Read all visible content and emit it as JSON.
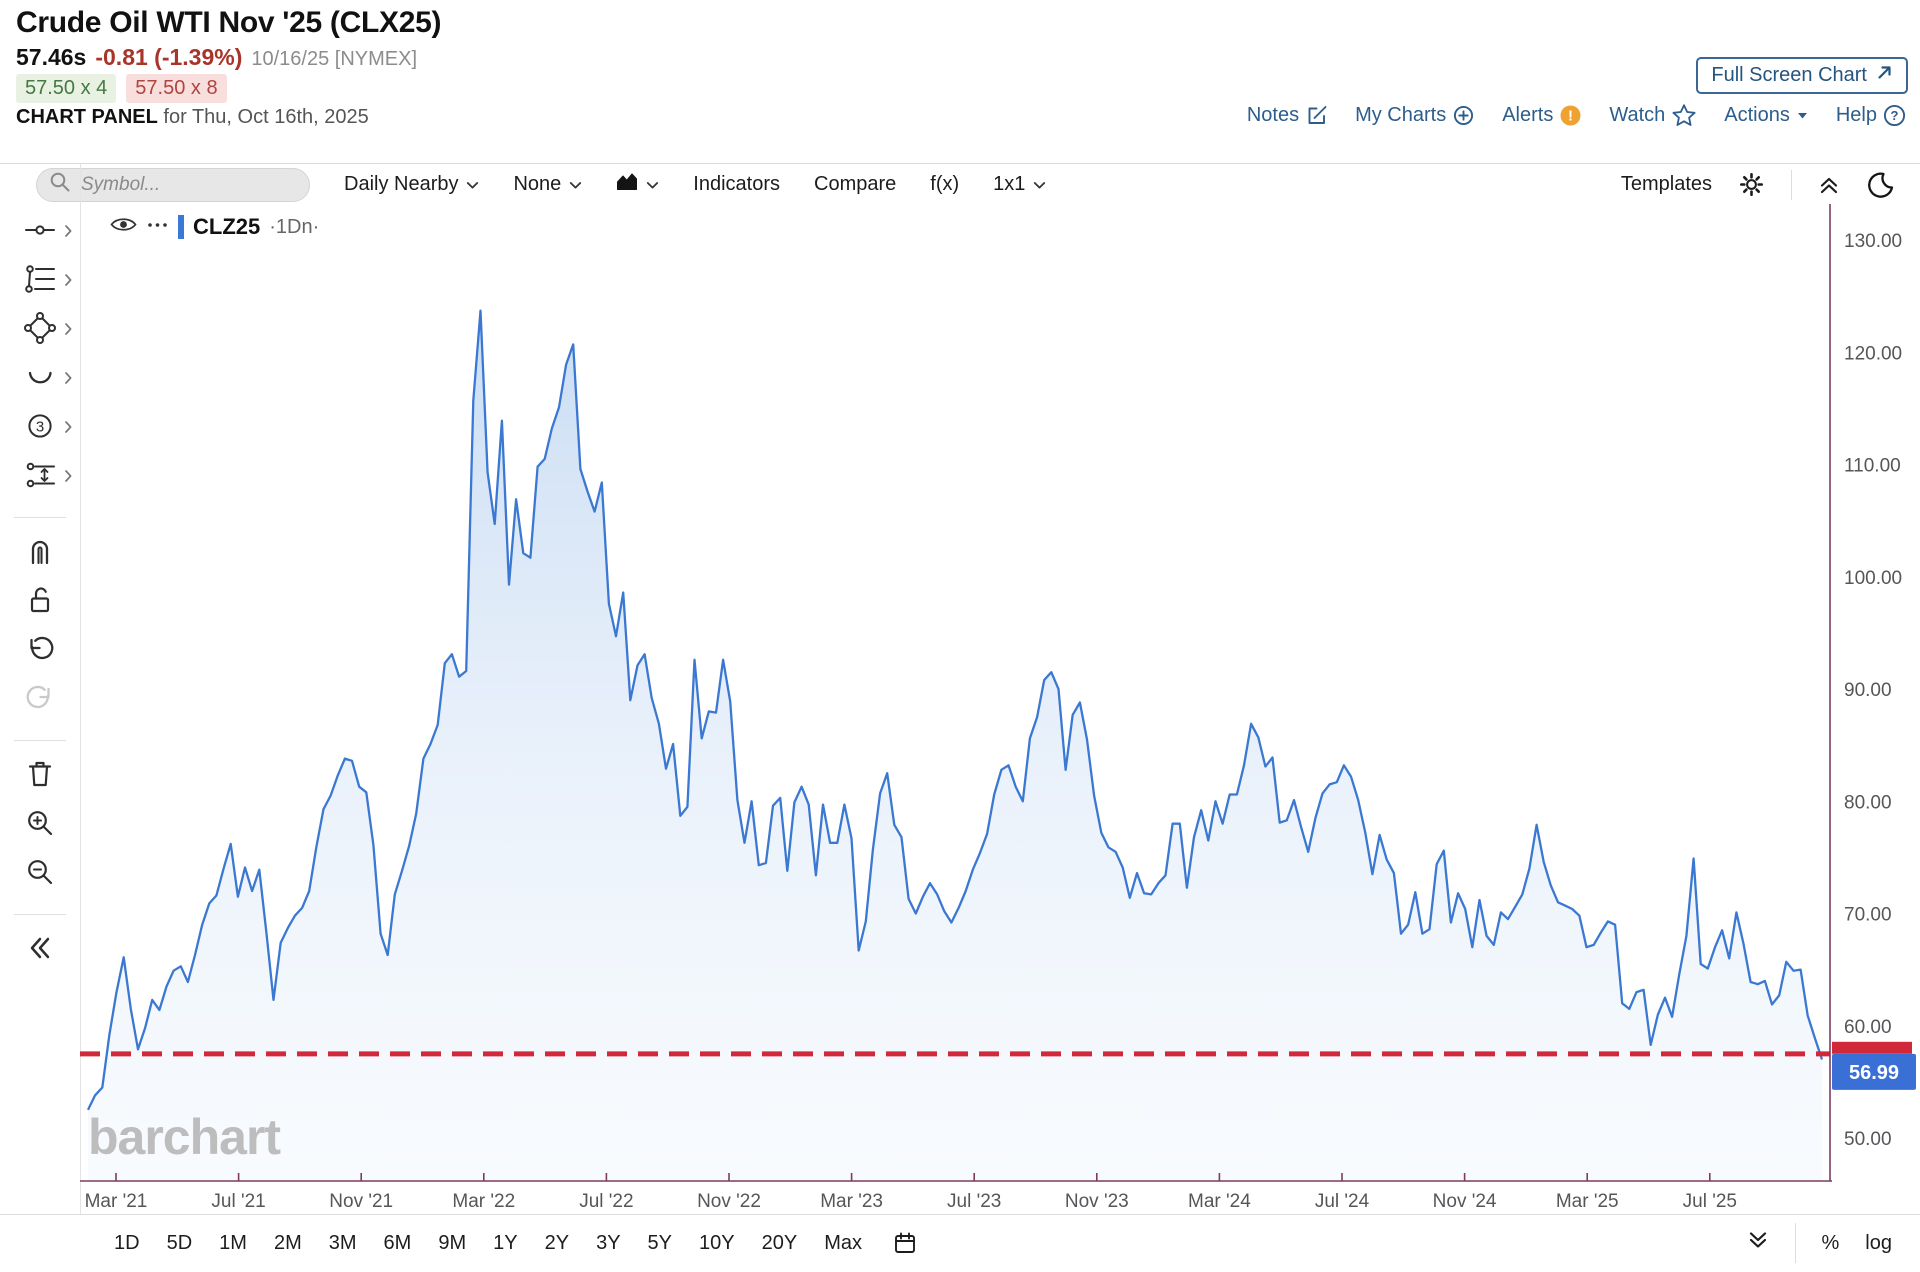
{
  "header": {
    "title": "Crude Oil WTI Nov '25 (CLX25)",
    "last_trade": "57.46s",
    "change": "-0.81 (-1.39%)",
    "session_info": "10/16/25 [NYMEX]",
    "bid_size": "57.50 x 4",
    "ask_size": "57.50 x 8",
    "panel_label": "CHART PANEL",
    "panel_date": " for Thu, Oct 16th, 2025",
    "fullscreen_label": "Full Screen Chart",
    "menu": [
      {
        "label": "Notes",
        "icon": "notes-edit-icon"
      },
      {
        "label": "My Charts",
        "icon": "circle-plus-icon"
      },
      {
        "label": "Alerts",
        "icon": "alert-badge-icon"
      },
      {
        "label": "Watch",
        "icon": "star-icon"
      },
      {
        "label": "Actions",
        "icon": "caret-down-icon"
      },
      {
        "label": "Help",
        "icon": "question-circle-icon"
      }
    ]
  },
  "toolbar": {
    "symbol_placeholder": "Symbol...",
    "frequency": "Daily Nearby",
    "tools_dropdown": "None",
    "indicators": "Indicators",
    "compare": "Compare",
    "fx": "f(x)",
    "grid_layout": "1x1",
    "templates": "Templates"
  },
  "sidebar_tools": [
    {
      "name": "trendline-tool-icon",
      "expandable": true
    },
    {
      "name": "fibonacci-tool-icon",
      "expandable": true
    },
    {
      "name": "shapes-tool-icon",
      "expandable": true
    },
    {
      "name": "arc-tool-icon",
      "expandable": true
    },
    {
      "name": "elliott-wave-tool-icon",
      "expandable": true
    },
    {
      "name": "measure-tool-icon",
      "expandable": true
    },
    {
      "divider": true
    },
    {
      "name": "magnet-icon"
    },
    {
      "name": "unlock-icon"
    },
    {
      "name": "undo-icon"
    },
    {
      "name": "redo-icon",
      "disabled": true
    },
    {
      "divider": true
    },
    {
      "name": "trash-icon"
    },
    {
      "name": "zoom-in-icon"
    },
    {
      "name": "zoom-out-icon"
    },
    {
      "divider": true
    },
    {
      "name": "collapse-sidebar-icon"
    }
  ],
  "chart": {
    "symbol": "CLZ25",
    "frequency_label": "·1Dn·",
    "watermark": "barchart",
    "last_price_label": "56.99",
    "colors": {
      "line_blue": "#3b78d2",
      "fill_blue": "#d9e6f7",
      "badge_blue": "#3a6fd6",
      "alert_red": "#d2293a",
      "axis_purple": "#7d3c5e",
      "accent_navy": "#2c5d8d"
    }
  },
  "chart_data": {
    "type": "area",
    "title": "CLZ25 daily nearby crude oil price",
    "x_tick_labels": [
      "Mar '21",
      "Jul '21",
      "Nov '21",
      "Mar '22",
      "Jul '22",
      "Nov '22",
      "Mar '23",
      "Jul '23",
      "Nov '23",
      "Mar '24",
      "Jul '24",
      "Nov '24",
      "Mar '25",
      "Jul '25"
    ],
    "y_ticks": [
      130,
      120,
      110,
      100,
      90,
      80,
      70,
      60,
      50
    ],
    "ylim": [
      46.5,
      133.5
    ],
    "x_range": [
      "Feb 2021",
      "Oct 16 2025"
    ],
    "grid": false,
    "horizontal_line": {
      "value": 57.5,
      "style": "dashed",
      "color": "#d2293a"
    },
    "last_value": 56.99,
    "values": [
      52.5,
      53.8,
      54.5,
      59.2,
      63.0,
      66.1,
      61.5,
      57.9,
      59.8,
      62.3,
      61.4,
      63.5,
      64.9,
      65.3,
      63.9,
      66.3,
      69.0,
      70.9,
      71.6,
      74.0,
      76.2,
      71.5,
      74.1,
      72.0,
      73.9,
      68.3,
      62.3,
      67.4,
      68.7,
      69.8,
      70.5,
      72.0,
      75.9,
      79.3,
      80.5,
      82.3,
      83.8,
      83.6,
      81.3,
      80.8,
      76.1,
      68.2,
      66.3,
      71.7,
      73.8,
      76.0,
      78.9,
      83.8,
      85.1,
      86.8,
      92.3,
      93.1,
      91.1,
      91.6,
      115.7,
      123.7,
      109.3,
      104.7,
      113.9,
      99.3,
      106.9,
      102.1,
      101.7,
      109.8,
      110.5,
      113.2,
      115.1,
      118.9,
      120.7,
      109.6,
      107.6,
      105.8,
      108.4,
      97.6,
      94.7,
      98.6,
      89.0,
      92.1,
      93.1,
      89.2,
      86.9,
      82.9,
      85.1,
      78.7,
      79.5,
      92.6,
      85.6,
      88.0,
      87.9,
      92.6,
      88.9,
      80.1,
      76.3,
      80.0,
      74.3,
      74.5,
      79.6,
      80.3,
      73.8,
      79.9,
      81.3,
      79.7,
      73.4,
      79.7,
      76.3,
      76.3,
      79.7,
      76.7,
      66.7,
      69.3,
      75.7,
      80.7,
      82.5,
      77.9,
      76.8,
      71.3,
      70.0,
      71.5,
      72.7,
      71.7,
      70.2,
      69.2,
      70.5,
      72.0,
      73.9,
      75.4,
      77.1,
      80.6,
      82.8,
      83.2,
      81.3,
      80.0,
      85.6,
      87.5,
      90.8,
      91.5,
      90.0,
      82.8,
      87.7,
      88.8,
      85.5,
      80.5,
      77.2,
      75.9,
      75.5,
      74.1,
      71.4,
      73.6,
      71.8,
      71.7,
      72.7,
      73.4,
      78.0,
      78.0,
      72.3,
      76.8,
      79.2,
      76.5,
      80.0,
      78.0,
      80.6,
      80.6,
      83.2,
      86.9,
      85.7,
      83.1,
      83.9,
      78.1,
      78.3,
      80.1,
      77.7,
      75.5,
      78.5,
      80.7,
      81.5,
      81.7,
      83.2,
      82.2,
      80.1,
      77.2,
      73.5,
      77.0,
      74.8,
      73.6,
      68.2,
      69.0,
      71.9,
      68.2,
      68.6,
      74.4,
      75.6,
      69.2,
      71.8,
      70.4,
      67.0,
      71.2,
      68.0,
      67.2,
      70.1,
      69.5,
      70.6,
      71.7,
      74.0,
      77.9,
      74.6,
      72.5,
      71.0,
      70.7,
      70.4,
      69.8,
      67.0,
      67.2,
      68.3,
      69.3,
      69.0,
      62.0,
      61.5,
      63.0,
      63.2,
      58.3,
      61.0,
      62.5,
      60.8,
      64.6,
      68.0,
      74.9,
      65.5,
      65.1,
      67.0,
      68.5,
      66.0,
      70.1,
      67.3,
      63.9,
      63.7,
      64.0,
      61.9,
      62.7,
      65.7,
      64.9,
      65.0,
      60.9,
      58.9,
      56.99
    ]
  },
  "bottom_toolbar": {
    "ranges": [
      "1D",
      "5D",
      "1M",
      "2M",
      "3M",
      "6M",
      "9M",
      "1Y",
      "2Y",
      "3Y",
      "5Y",
      "10Y",
      "20Y",
      "Max"
    ],
    "percent_label": "%",
    "log_label": "log"
  }
}
